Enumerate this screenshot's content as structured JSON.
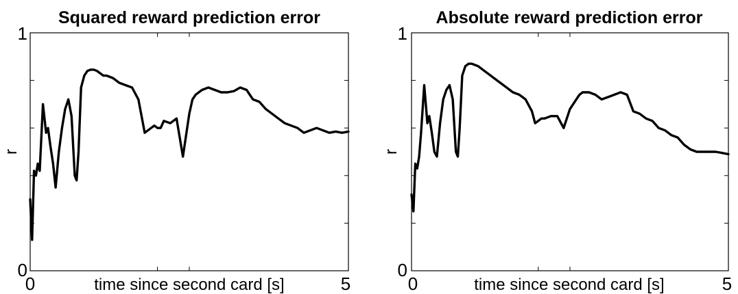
{
  "chart_data": [
    {
      "type": "line",
      "title": "Squared reward prediction error",
      "xlabel": "time since second card [s]",
      "ylabel": "r",
      "xlim": [
        0,
        5
      ],
      "ylim": [
        0,
        1
      ],
      "xticks": [
        0,
        5
      ],
      "yticks": [
        0,
        1
      ],
      "minor_yticks": [
        0.2,
        0.4,
        0.6,
        0.8
      ],
      "minor_xticks": [
        2,
        2.5
      ],
      "series": [
        {
          "color": "#000000",
          "x": [
            0.0,
            0.03,
            0.06,
            0.09,
            0.12,
            0.15,
            0.2,
            0.25,
            0.28,
            0.32,
            0.36,
            0.4,
            0.45,
            0.5,
            0.55,
            0.6,
            0.65,
            0.7,
            0.73,
            0.76,
            0.8,
            0.85,
            0.9,
            0.95,
            1.0,
            1.05,
            1.1,
            1.15,
            1.2,
            1.3,
            1.4,
            1.5,
            1.6,
            1.7,
            1.8,
            1.9,
            1.95,
            2.0,
            2.05,
            2.1,
            2.2,
            2.3,
            2.4,
            2.5,
            2.55,
            2.6,
            2.65,
            2.7,
            2.8,
            2.9,
            3.0,
            3.1,
            3.2,
            3.3,
            3.4,
            3.5,
            3.6,
            3.7,
            3.8,
            3.9,
            4.0,
            4.1,
            4.2,
            4.3,
            4.4,
            4.5,
            4.6,
            4.7,
            4.8,
            4.9,
            5.0
          ],
          "y": [
            0.3,
            0.13,
            0.42,
            0.4,
            0.45,
            0.42,
            0.7,
            0.58,
            0.6,
            0.52,
            0.45,
            0.35,
            0.5,
            0.6,
            0.68,
            0.72,
            0.65,
            0.4,
            0.38,
            0.5,
            0.77,
            0.82,
            0.84,
            0.845,
            0.845,
            0.84,
            0.83,
            0.82,
            0.82,
            0.81,
            0.79,
            0.78,
            0.77,
            0.72,
            0.58,
            0.6,
            0.61,
            0.6,
            0.6,
            0.63,
            0.62,
            0.64,
            0.48,
            0.66,
            0.72,
            0.74,
            0.75,
            0.76,
            0.77,
            0.76,
            0.75,
            0.75,
            0.755,
            0.77,
            0.76,
            0.72,
            0.71,
            0.68,
            0.66,
            0.64,
            0.62,
            0.61,
            0.6,
            0.58,
            0.59,
            0.6,
            0.59,
            0.58,
            0.585,
            0.58,
            0.585
          ]
        }
      ]
    },
    {
      "type": "line",
      "title": "Absolute reward prediction error",
      "xlabel": "time since second card [s]",
      "ylabel": "r",
      "xlim": [
        0,
        5
      ],
      "ylim": [
        0,
        1
      ],
      "xticks": [
        0,
        5
      ],
      "yticks": [
        0,
        1
      ],
      "minor_yticks": [
        0.2,
        0.4,
        0.6,
        0.8
      ],
      "minor_xticks": [
        2,
        2.5
      ],
      "series": [
        {
          "color": "#000000",
          "x": [
            0.0,
            0.03,
            0.06,
            0.09,
            0.12,
            0.15,
            0.2,
            0.25,
            0.28,
            0.32,
            0.36,
            0.4,
            0.45,
            0.5,
            0.55,
            0.6,
            0.65,
            0.7,
            0.73,
            0.76,
            0.8,
            0.85,
            0.9,
            0.95,
            1.0,
            1.05,
            1.1,
            1.15,
            1.2,
            1.3,
            1.4,
            1.5,
            1.6,
            1.7,
            1.8,
            1.9,
            1.95,
            2.0,
            2.05,
            2.1,
            2.2,
            2.3,
            2.4,
            2.5,
            2.55,
            2.6,
            2.65,
            2.7,
            2.8,
            2.9,
            3.0,
            3.1,
            3.2,
            3.3,
            3.4,
            3.5,
            3.6,
            3.7,
            3.8,
            3.9,
            4.0,
            4.1,
            4.2,
            4.3,
            4.4,
            4.5,
            4.6,
            4.7,
            4.8,
            4.9,
            5.0
          ],
          "y": [
            0.32,
            0.25,
            0.45,
            0.43,
            0.48,
            0.58,
            0.78,
            0.62,
            0.65,
            0.58,
            0.5,
            0.48,
            0.62,
            0.72,
            0.76,
            0.78,
            0.72,
            0.5,
            0.48,
            0.6,
            0.82,
            0.86,
            0.87,
            0.87,
            0.865,
            0.86,
            0.85,
            0.84,
            0.83,
            0.81,
            0.79,
            0.77,
            0.75,
            0.74,
            0.72,
            0.67,
            0.62,
            0.63,
            0.64,
            0.64,
            0.65,
            0.65,
            0.6,
            0.68,
            0.7,
            0.72,
            0.74,
            0.75,
            0.75,
            0.74,
            0.72,
            0.73,
            0.74,
            0.75,
            0.74,
            0.67,
            0.66,
            0.64,
            0.63,
            0.6,
            0.59,
            0.57,
            0.56,
            0.53,
            0.51,
            0.5,
            0.5,
            0.5,
            0.5,
            0.495,
            0.49
          ]
        }
      ]
    }
  ]
}
